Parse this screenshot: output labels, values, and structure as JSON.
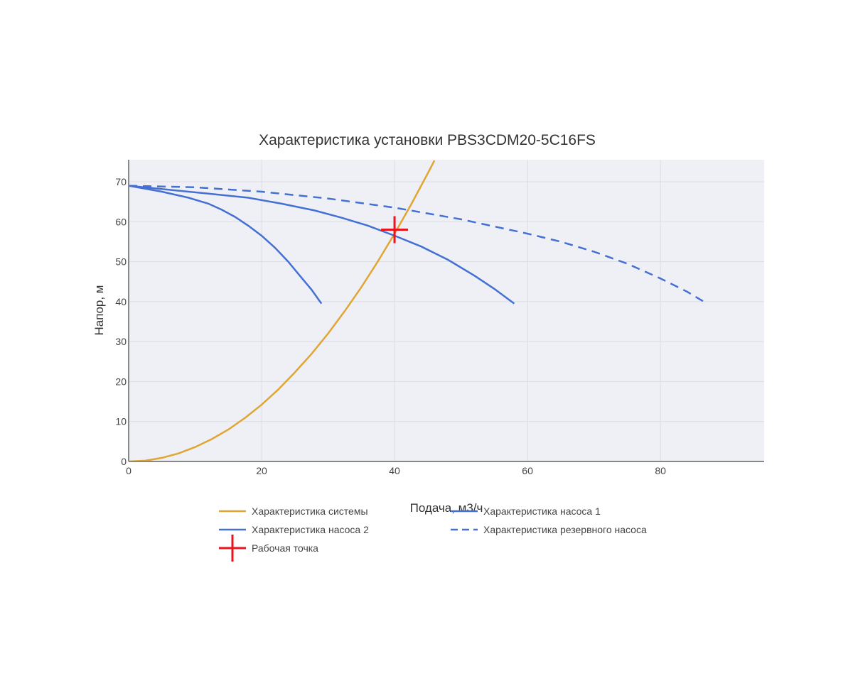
{
  "chart_data": {
    "type": "line",
    "title": "Характеристика установки PBS3CDM20-5C16FS",
    "x_label": "Подача, м3/ч",
    "y_label": "Напор, м",
    "xlim": [
      0,
      95.6
    ],
    "ylim": [
      0,
      75.5
    ],
    "xticks": [
      0,
      20,
      40,
      60,
      80
    ],
    "yticks": [
      0,
      10,
      20,
      30,
      40,
      50,
      60,
      70
    ],
    "grid": true,
    "legend": "bottom",
    "series": [
      {
        "name": "Характеристика системы",
        "color": "#e0a532",
        "dash": "solid",
        "mode": "lines",
        "x": [
          0,
          2.5,
          5,
          7.5,
          10,
          12.5,
          15,
          17.5,
          20,
          22.5,
          25,
          27.5,
          30,
          32.5,
          35,
          37.5,
          40,
          42.5,
          45,
          46
        ],
        "values": [
          0,
          0.2,
          0.9,
          2,
          3.6,
          5.6,
          8,
          10.9,
          14.2,
          18,
          22.3,
          26.9,
          32,
          37.6,
          43.6,
          50.1,
          57,
          64.3,
          72.1,
          75.3
        ]
      },
      {
        "name": "Характеристика насоса 1",
        "color": "#4470d4",
        "dash": "solid",
        "mode": "lines",
        "x": [
          0,
          5,
          9,
          12,
          14,
          16,
          18,
          20,
          22,
          24,
          26,
          27.5,
          29
        ],
        "values": [
          69,
          67.5,
          66,
          64.5,
          63,
          61.2,
          59,
          56.5,
          53.5,
          50,
          46,
          43,
          39.5
        ]
      },
      {
        "name": "Характеристика насоса 2",
        "color": "#4470d4",
        "dash": "solid",
        "mode": "lines",
        "x": [
          0,
          12,
          18,
          23,
          28,
          32,
          36,
          40,
          44,
          48,
          52,
          55,
          58
        ],
        "values": [
          69,
          67,
          66,
          64.5,
          62.8,
          61,
          59,
          56.5,
          53.8,
          50.5,
          46.5,
          43.2,
          39.5
        ]
      },
      {
        "name": "Характеристика резервного насоса",
        "color": "#4470d4",
        "dash": "dash",
        "mode": "lines",
        "x": [
          0,
          10,
          20,
          30,
          40,
          50,
          60,
          65,
          70,
          75,
          80,
          84,
          87
        ],
        "values": [
          69,
          68.6,
          67.5,
          65.8,
          63.5,
          60.6,
          57,
          55,
          52.5,
          49.5,
          45.8,
          42.5,
          39.5
        ]
      },
      {
        "name": "Рабочая точка",
        "color": "#e8141e",
        "dash": "solid",
        "mode": "cross",
        "x": [
          40
        ],
        "values": [
          58
        ]
      }
    ]
  }
}
